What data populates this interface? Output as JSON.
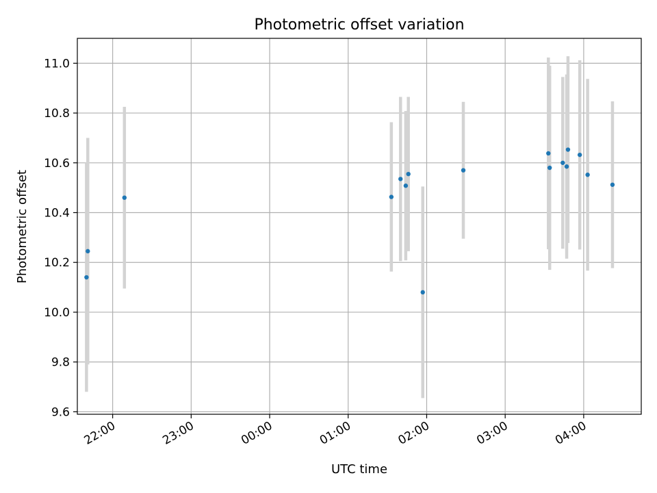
{
  "chart_data": {
    "type": "scatter",
    "title": "Photometric offset variation",
    "xlabel": "UTC time",
    "ylabel": "Photometric offset",
    "ylim": [
      9.59,
      11.1
    ],
    "xlim": [
      "21:33",
      "04:44"
    ],
    "yticks": [
      "9.6",
      "9.8",
      "10.0",
      "10.2",
      "10.4",
      "10.6",
      "10.8",
      "11.0"
    ],
    "xticks": [
      "22:00",
      "23:00",
      "00:00",
      "01:00",
      "02:00",
      "03:00",
      "04:00"
    ],
    "grid": true,
    "colors": {
      "point": "#1f77b4",
      "errorbar": "#d3d3d3",
      "grid": "#b0b0b0"
    },
    "points": [
      {
        "x": "21:40",
        "y": 10.14,
        "err": 0.46
      },
      {
        "x": "21:41",
        "y": 10.245,
        "err": 0.455
      },
      {
        "x": "22:09",
        "y": 10.46,
        "err": 0.365
      },
      {
        "x": "01:33",
        "y": 10.463,
        "err": 0.3
      },
      {
        "x": "01:40",
        "y": 10.535,
        "err": 0.33
      },
      {
        "x": "01:44",
        "y": 10.508,
        "err": 0.3
      },
      {
        "x": "01:46",
        "y": 10.555,
        "err": 0.31
      },
      {
        "x": "01:57",
        "y": 10.08,
        "err": 0.425
      },
      {
        "x": "02:28",
        "y": 10.57,
        "err": 0.275
      },
      {
        "x": "03:33",
        "y": 10.638,
        "err": 0.385
      },
      {
        "x": "03:34",
        "y": 10.58,
        "err": 0.41
      },
      {
        "x": "03:44",
        "y": 10.6,
        "err": 0.345
      },
      {
        "x": "03:47",
        "y": 10.585,
        "err": 0.37
      },
      {
        "x": "03:48",
        "y": 10.653,
        "err": 0.375
      },
      {
        "x": "03:57",
        "y": 10.632,
        "err": 0.38
      },
      {
        "x": "04:03",
        "y": 10.552,
        "err": 0.385
      },
      {
        "x": "04:22",
        "y": 10.512,
        "err": 0.335
      }
    ]
  }
}
